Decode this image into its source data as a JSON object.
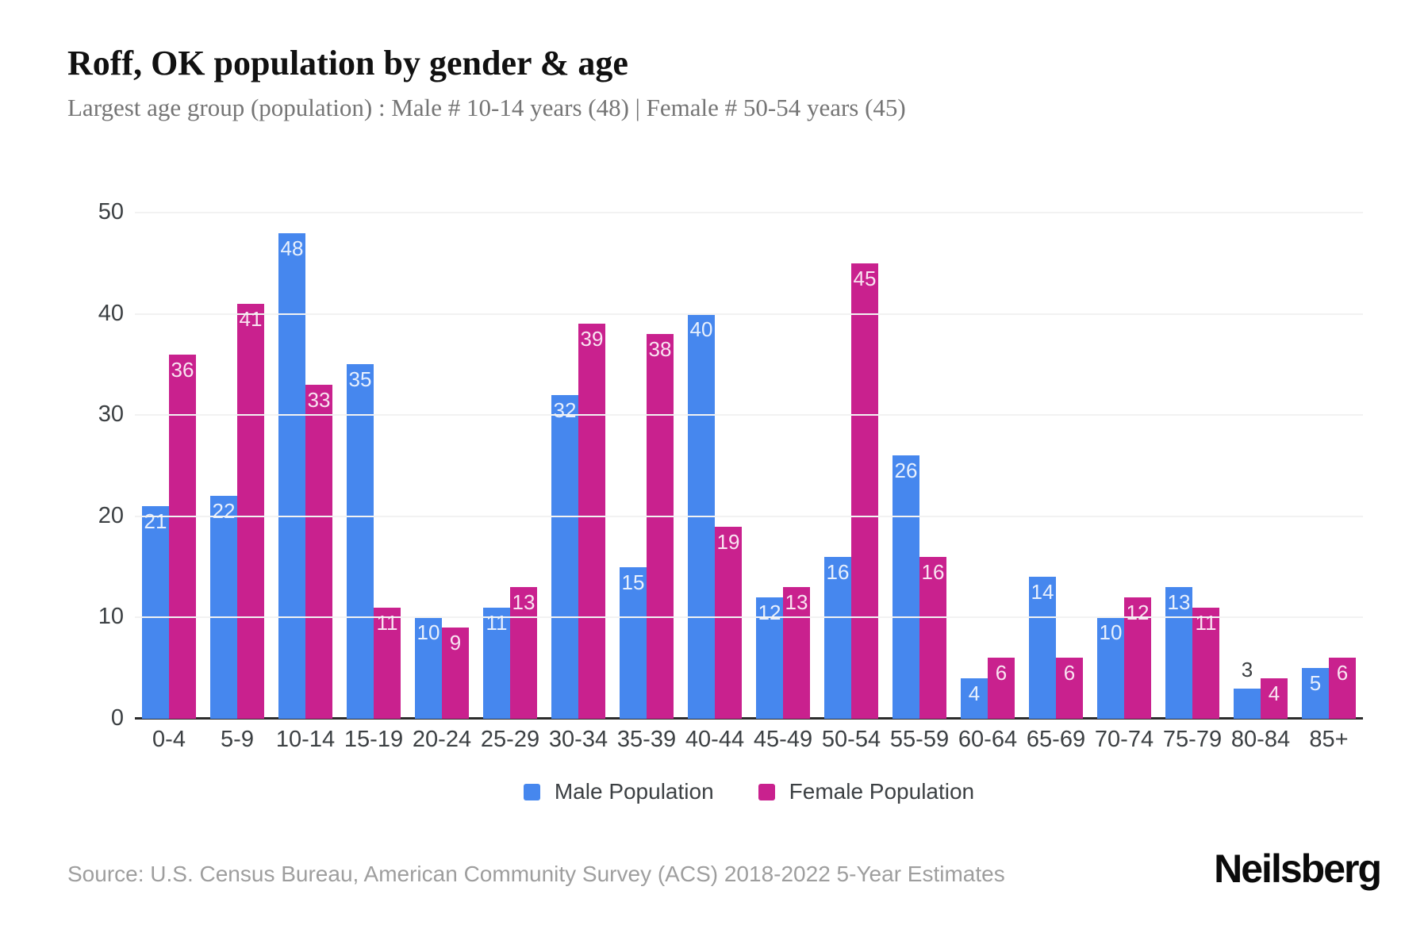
{
  "header": {
    "title": "Roff, OK population by gender & age",
    "subtitle": "Largest age group (population) : Male # 10-14 years (48) | Female # 50-54 years (45)"
  },
  "chart_data": {
    "type": "bar",
    "title": "Roff, OK population by gender & age",
    "subtitle": "Largest age group (population) : Male # 10-14 years (48) | Female # 50-54 years (45)",
    "categories": [
      "0-4",
      "5-9",
      "10-14",
      "15-19",
      "20-24",
      "25-29",
      "30-34",
      "35-39",
      "40-44",
      "45-49",
      "50-54",
      "55-59",
      "60-64",
      "65-69",
      "70-74",
      "75-79",
      "80-84",
      "85+"
    ],
    "series": [
      {
        "name": "Male Population",
        "color": "#4687ee",
        "values": [
          21,
          22,
          48,
          35,
          10,
          11,
          32,
          15,
          40,
          12,
          16,
          26,
          4,
          14,
          10,
          13,
          3,
          5
        ]
      },
      {
        "name": "Female Population",
        "color": "#c9218e",
        "values": [
          36,
          41,
          33,
          11,
          9,
          13,
          39,
          38,
          19,
          13,
          45,
          16,
          6,
          6,
          12,
          11,
          4,
          6
        ]
      }
    ],
    "xlabel": "",
    "ylabel": "",
    "ylim": [
      0,
      50
    ],
    "yticks": [
      0,
      10,
      20,
      30,
      40,
      50
    ],
    "grid": true,
    "legend_position": "bottom",
    "value_labels": "inside-top, white; values of 3 or less shown above bar in dark gray",
    "colors": {
      "male": "#4687ee",
      "female": "#c9218e",
      "gridline": "#f2f2f2",
      "axis_line": "#2b2b2b",
      "tick_text": "#3c4043",
      "subtitle_text": "#757575",
      "source_text": "#9e9e9e"
    }
  },
  "footer": {
    "source": "Source: U.S. Census Bureau, American Community Survey (ACS) 2018-2022 5-Year Estimates",
    "logo": "Neilsberg"
  }
}
